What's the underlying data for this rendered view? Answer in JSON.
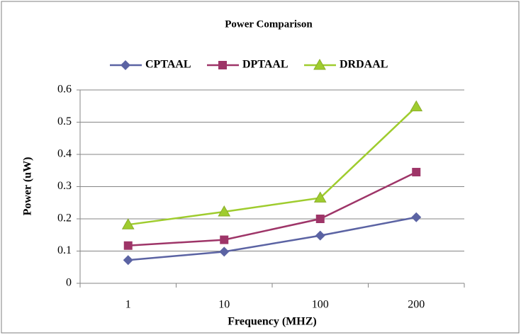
{
  "chart_data": {
    "type": "line",
    "title": "Power Comparison",
    "x_label": "Frequency (MHZ)",
    "y_label": "Power (uW)",
    "categories": [
      "1",
      "10",
      "100",
      "200"
    ],
    "series": [
      {
        "name": "CPTAAL",
        "color": "#5b63a3",
        "marker": "diamond",
        "values": [
          0.072,
          0.098,
          0.148,
          0.205
        ]
      },
      {
        "name": "DPTAAL",
        "color": "#9e3568",
        "marker": "square",
        "values": [
          0.117,
          0.135,
          0.2,
          0.345
        ]
      },
      {
        "name": "DRDAAL",
        "color": "#9fcc2e",
        "marker": "triangle",
        "values": [
          0.182,
          0.222,
          0.265,
          0.548
        ]
      }
    ],
    "ylim": [
      0,
      0.6
    ],
    "yticks": [
      0,
      0.1,
      0.2,
      0.3,
      0.4,
      0.5,
      0.6
    ],
    "grid": true,
    "legend": "top"
  }
}
